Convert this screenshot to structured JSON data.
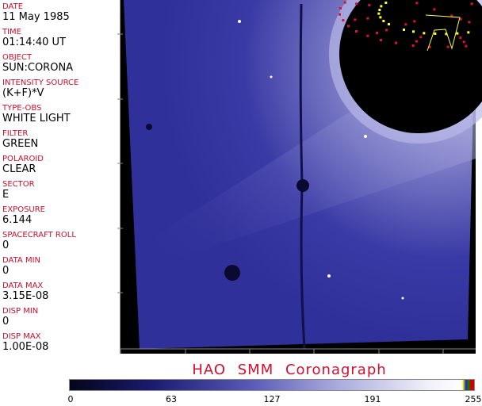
{
  "info": [
    {
      "label": "DATE",
      "value": "11 May 1985"
    },
    {
      "label": "TIME",
      "value": "01:14:40 UT"
    },
    {
      "label": "OBJECT",
      "value": "SUN:CORONA"
    },
    {
      "label": "INTENSITY SOURCE",
      "value": "(K+F)*V"
    },
    {
      "label": "TYPE-OBS",
      "value": "WHITE LIGHT"
    },
    {
      "label": "FILTER",
      "value": "GREEN"
    },
    {
      "label": "POLAROID",
      "value": "CLEAR"
    },
    {
      "label": "SECTOR",
      "value": "E"
    },
    {
      "label": "EXPOSURE",
      "value": "6.144"
    },
    {
      "label": "SPACECRAFT ROLL",
      "value": "0"
    },
    {
      "label": "DATA MIN",
      "value": "0"
    },
    {
      "label": "DATA MAX",
      "value": "3.15E-08"
    },
    {
      "label": "DISP MIN",
      "value": "0"
    },
    {
      "label": "DISP MAX",
      "value": "1.00E-08"
    }
  ],
  "title": "HAO  SMM  Coronagraph",
  "colorbar": {
    "ticks": [
      "0",
      "63",
      "127",
      "191",
      "255"
    ],
    "colors": {
      "low": "#05051a",
      "mid": "#5a5ab8",
      "high": "#ffffff"
    }
  },
  "image": {
    "colors": {
      "background": "#000000",
      "field": "#3636a0",
      "occulter_red": "#e01030",
      "occulter_yellow": "#ffff30"
    }
  }
}
